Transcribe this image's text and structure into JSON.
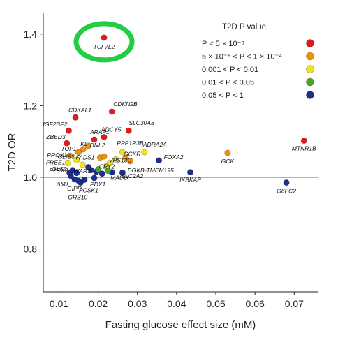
{
  "chart_data": {
    "type": "scatter",
    "xlabel": "Fasting glucose effect size (mM)",
    "ylabel": "T2D OR",
    "xlim": [
      0.006,
      0.076
    ],
    "ylim": [
      0.68,
      1.46
    ],
    "xticks": [
      "0.01",
      "0.02",
      "0.03",
      "0.04",
      "0.05",
      "0.06",
      "0.07"
    ],
    "xtick_values": [
      0.01,
      0.02,
      0.03,
      0.04,
      0.05,
      0.06,
      0.07
    ],
    "yticks": [
      "0.8",
      "1.0",
      "1.2",
      "1.4"
    ],
    "ytick_values": [
      0.8,
      1.0,
      1.2,
      1.4
    ],
    "reference_line_y": 1.0,
    "grid": false,
    "legend": {
      "title": "T2D P value",
      "placement": "top-right",
      "entries": [
        {
          "label": "P < 5 × 10⁻⁸",
          "color": "#e11b1b"
        },
        {
          "label": "5 × 10⁻⁸ < P < 1 × 10⁻⁴",
          "color": "#f0910a"
        },
        {
          "label": "0.001 < P < 0.01",
          "color": "#f2e31a"
        },
        {
          "label": "0.01 < P < 0.05",
          "color": "#4aa52a"
        },
        {
          "label": "0.05 < P < 1",
          "color": "#1c2f8c"
        }
      ]
    },
    "highlight": {
      "label": "TCF7L2",
      "color": "#22cc44"
    },
    "points": [
      {
        "label": "TCF7L2",
        "x": 0.0215,
        "y": 1.39,
        "cls": 0
      },
      {
        "label": "MTNR1B",
        "x": 0.0725,
        "y": 1.102,
        "cls": 0
      },
      {
        "label": "G6PC2",
        "x": 0.068,
        "y": 0.985,
        "cls": 4
      },
      {
        "label": "GCK",
        "x": 0.053,
        "y": 1.068,
        "cls": 1
      },
      {
        "label": "IKBKAP",
        "x": 0.0435,
        "y": 1.014,
        "cls": 4
      },
      {
        "label": "FOXA2",
        "x": 0.0355,
        "y": 1.047,
        "cls": 4
      },
      {
        "label": "ADRA2A",
        "x": 0.0318,
        "y": 1.07,
        "cls": 2
      },
      {
        "label": "SLC30A8",
        "x": 0.0278,
        "y": 1.13,
        "cls": 0
      },
      {
        "label": "CDKN2B",
        "x": 0.0235,
        "y": 1.183,
        "cls": 0
      },
      {
        "label": "ADCY5",
        "x": 0.0215,
        "y": 1.112,
        "cls": 0
      },
      {
        "label": "CDKAL1",
        "x": 0.0142,
        "y": 1.167,
        "cls": 0
      },
      {
        "label": "IGF2BP2",
        "x": 0.0125,
        "y": 1.13,
        "cls": 0
      },
      {
        "label": "ZBED3",
        "x": 0.012,
        "y": 1.095,
        "cls": 0
      },
      {
        "label": "ARAP1",
        "x": 0.019,
        "y": 1.105,
        "cls": 0
      },
      {
        "label": "DNLZ",
        "x": 0.0175,
        "y": 1.088,
        "cls": 1
      },
      {
        "label": "KL",
        "x": 0.0162,
        "y": 1.078,
        "cls": 1
      },
      {
        "label": "TOP1",
        "x": 0.015,
        "y": 1.07,
        "cls": 1
      },
      {
        "label": "PROX1",
        "x": 0.0128,
        "y": 1.06,
        "cls": 1
      },
      {
        "label": "GLIS3",
        "x": 0.0145,
        "y": 1.048,
        "cls": 2
      },
      {
        "label": "PPP1R3B",
        "x": 0.0262,
        "y": 1.07,
        "cls": 2
      },
      {
        "label": "GCKR",
        "x": 0.027,
        "y": 1.055,
        "cls": 1
      },
      {
        "label": "VPS13C",
        "x": 0.0245,
        "y": 1.05,
        "cls": 2
      },
      {
        "label": "CRY2",
        "x": 0.022,
        "y": 1.03,
        "cls": 2
      },
      {
        "label": "DGKB-TMEM195",
        "x": 0.0282,
        "y": 1.045,
        "cls": 1
      },
      {
        "label": "FADS1",
        "x": 0.0205,
        "y": 1.055,
        "cls": 1
      },
      {
        "label": "PROX1b",
        "x": 0.0215,
        "y": 1.058,
        "cls": 1
      },
      {
        "label": "SLC2A2",
        "x": 0.0262,
        "y": 1.013,
        "cls": 4
      },
      {
        "label": "MADD",
        "x": 0.0235,
        "y": 1.014,
        "cls": 4
      },
      {
        "label": "WARS",
        "x": 0.0195,
        "y": 1.015,
        "cls": 4
      },
      {
        "label": "PDX1",
        "x": 0.019,
        "y": 0.998,
        "cls": 4
      },
      {
        "label": "PCSK1",
        "x": 0.0165,
        "y": 0.993,
        "cls": 4
      },
      {
        "label": "GRB10",
        "x": 0.0155,
        "y": 0.985,
        "cls": 4
      },
      {
        "label": "GIPR",
        "x": 0.015,
        "y": 0.99,
        "cls": 4
      },
      {
        "label": "AMT",
        "x": 0.014,
        "y": 0.994,
        "cls": 4
      },
      {
        "label": "P2RX2",
        "x": 0.013,
        "y": 1.004,
        "cls": 4
      },
      {
        "label": "GLS2",
        "x": 0.0127,
        "y": 1.013,
        "cls": 4
      },
      {
        "label": "FREE1",
        "x": 0.0123,
        "y": 1.04,
        "cls": 2
      },
      {
        "label": "",
        "x": 0.0175,
        "y": 1.028,
        "cls": 4
      },
      {
        "label": "",
        "x": 0.0182,
        "y": 1.02,
        "cls": 4
      },
      {
        "label": "",
        "x": 0.02,
        "y": 1.022,
        "cls": 3
      },
      {
        "label": "",
        "x": 0.021,
        "y": 1.01,
        "cls": 4
      },
      {
        "label": "",
        "x": 0.0225,
        "y": 1.018,
        "cls": 3
      },
      {
        "label": "",
        "x": 0.0135,
        "y": 1.02,
        "cls": 4
      },
      {
        "label": "",
        "x": 0.0145,
        "y": 1.012,
        "cls": 4
      },
      {
        "label": "",
        "x": 0.016,
        "y": 1.035,
        "cls": 2
      },
      {
        "label": "",
        "x": 0.023,
        "y": 1.04,
        "cls": 2
      }
    ]
  }
}
